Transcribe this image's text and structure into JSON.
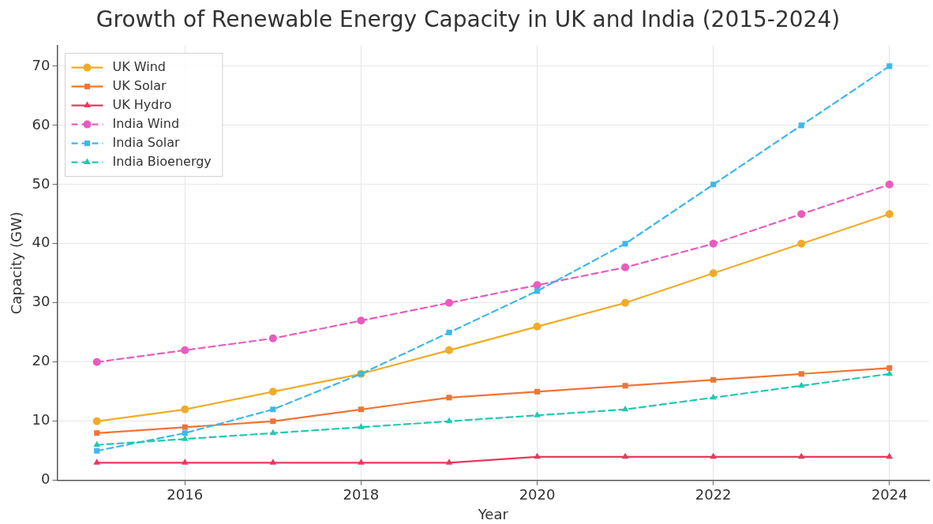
{
  "chart_data": {
    "type": "line",
    "title": "Growth of Renewable Energy Capacity in UK and India (2015-2024)",
    "xlabel": "Year",
    "ylabel": "Capacity (GW)",
    "x": [
      2015,
      2016,
      2017,
      2018,
      2019,
      2020,
      2021,
      2022,
      2023,
      2024
    ],
    "xlim": [
      2014.55,
      2024.45
    ],
    "xticks": [
      2016,
      2018,
      2020,
      2022,
      2024
    ],
    "ylim": [
      0,
      73.5
    ],
    "yticks": [
      0,
      10,
      20,
      30,
      40,
      50,
      60,
      70
    ],
    "grid": true,
    "legend": "top left",
    "series": [
      {
        "name": "UK Wind",
        "color": "#f0ac28",
        "marker": "circle",
        "line_style": "solid",
        "values": [
          10,
          12,
          15,
          18,
          22,
          26,
          30,
          35,
          40,
          45
        ]
      },
      {
        "name": "UK Solar",
        "color": "#f07434",
        "marker": "square",
        "line_style": "solid",
        "values": [
          8,
          9,
          10,
          12,
          14,
          15,
          16,
          17,
          18,
          19
        ]
      },
      {
        "name": "UK Hydro",
        "color": "#e8385c",
        "marker": "triangle",
        "line_style": "solid",
        "values": [
          3,
          3,
          3,
          3,
          3,
          4,
          4,
          4,
          4,
          4
        ]
      },
      {
        "name": "India Wind",
        "color": "#e85cc0",
        "marker": "circle",
        "line_style": "dashed",
        "values": [
          20,
          22,
          24,
          27,
          30,
          33,
          36,
          40,
          45,
          50
        ]
      },
      {
        "name": "India Solar",
        "color": "#3cb8ec",
        "marker": "square",
        "line_style": "dashed",
        "values": [
          5,
          8,
          12,
          18,
          25,
          32,
          40,
          50,
          60,
          70
        ]
      },
      {
        "name": "India Bioenergy",
        "color": "#22c8b0",
        "marker": "triangle",
        "line_style": "dashed",
        "values": [
          6,
          7,
          8,
          9,
          10,
          11,
          12,
          14,
          16,
          18
        ]
      }
    ]
  }
}
